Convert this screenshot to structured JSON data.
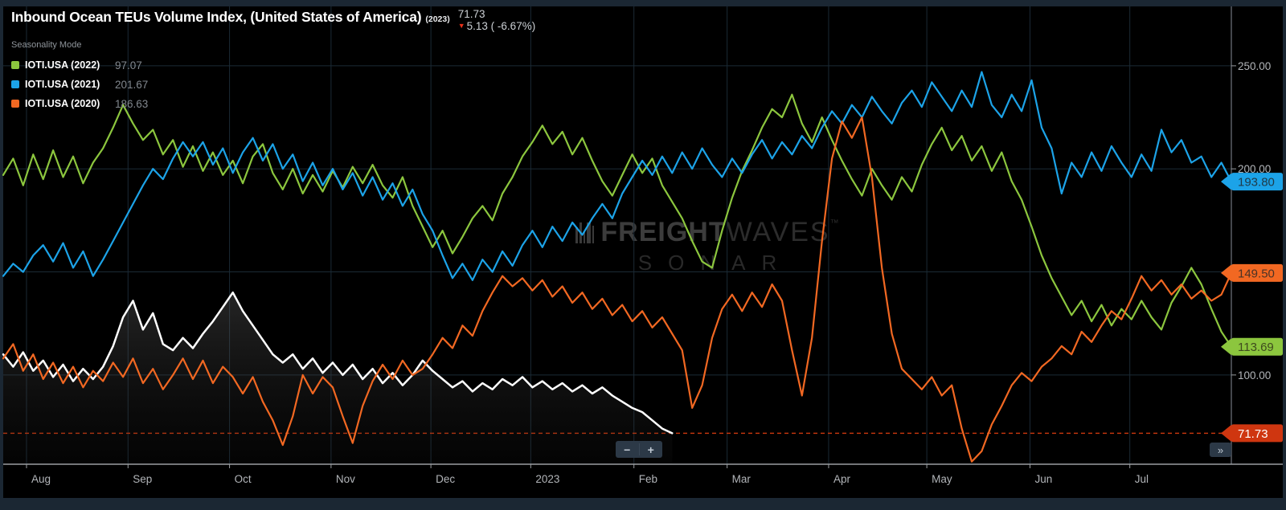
{
  "header": {
    "title": "Inbound Ocean TEUs Volume Index, (United States of America)",
    "year_tag": "(2023)",
    "last_value": "71.73",
    "change_arrow": "▼",
    "change_text": "5.13 ( -6.67%)"
  },
  "legend": {
    "mode_label": "Seasonality Mode",
    "items": [
      {
        "label": "IOTI.USA (2022)",
        "value": "97.07",
        "color": "#8cc63e"
      },
      {
        "label": "IOTI.USA (2021)",
        "value": "201.67",
        "color": "#1ca3e8"
      },
      {
        "label": "IOTI.USA (2020)",
        "value": "186.63",
        "color": "#f26822"
      }
    ]
  },
  "watermark": {
    "brand_bold": "FREIGHT",
    "brand_light": "WAVES",
    "tm": "™",
    "subbrand": "SONAR"
  },
  "controls": {
    "zoom_out": "−",
    "zoom_in": "+",
    "expand": "»"
  },
  "chart_data": {
    "type": "line",
    "title": "Inbound Ocean TEUs Volume Index, (United States of America) (2023)",
    "grid": true,
    "legend_position": "top-left",
    "x_axis": {
      "domain_days": [
        0,
        369
      ],
      "tick_days": [
        7,
        37.5,
        68,
        98.5,
        128.5,
        158.5,
        189.5,
        217.5,
        248,
        277.5,
        308.5,
        338.5
      ],
      "tick_labels": [
        "Aug",
        "Sep",
        "Oct",
        "Nov",
        "Dec",
        "2023",
        "Feb",
        "Mar",
        "Apr",
        "May",
        "Jun",
        "Jul"
      ]
    },
    "y_axis": {
      "ylim": [
        56.7,
        278.8
      ],
      "grid_values": [
        250,
        200,
        150,
        100
      ],
      "tick_labels": [
        "250.00",
        "200.00",
        "150.00",
        "100.00"
      ]
    },
    "last_value_line": {
      "value": 71.73,
      "color": "#d0390e",
      "style": "dashed"
    },
    "price_tags": [
      {
        "series": "IOTI.USA (2021)",
        "label": "193.80",
        "value": 193.8,
        "color": "#1ca3e8",
        "text_color": "#203a48"
      },
      {
        "series": "IOTI.USA (2020)",
        "label": "149.50",
        "value": 149.5,
        "color": "#f26822",
        "text_color": "#4a3226"
      },
      {
        "series": "IOTI.USA (2022)",
        "label": "113.69",
        "value": 113.69,
        "color": "#8cc63e",
        "text_color": "#3e4a1e"
      },
      {
        "series": "IOTI.USA (2023)",
        "label": "71.73",
        "value": 71.73,
        "color": "#cf3610",
        "text_color": "#ffffff"
      }
    ],
    "day_step": 3,
    "series": [
      {
        "name": "IOTI.USA (2023)",
        "color": "#ffffff",
        "style": "area",
        "last_value": 71.73,
        "values": [
          110,
          104,
          111,
          102,
          107,
          99,
          105,
          97,
          103,
          98,
          104,
          114,
          128,
          136,
          122,
          130,
          115,
          112,
          118,
          113,
          120,
          126,
          133,
          140,
          131,
          124,
          117,
          110,
          106,
          110,
          103,
          108,
          101,
          106,
          100,
          105,
          98,
          103,
          96,
          101,
          95,
          100,
          107,
          102,
          98,
          94,
          97,
          92,
          96,
          93,
          98,
          95,
          99,
          94,
          97,
          93,
          96,
          92,
          95,
          91,
          94,
          90,
          87,
          84,
          82,
          78,
          74,
          71.73
        ]
      },
      {
        "name": "IOTI.USA (2022)",
        "color": "#8cc63e",
        "style": "line",
        "last_value": 113.69,
        "values": [
          197,
          205,
          192,
          207,
          195,
          209,
          196,
          206,
          193,
          203,
          210,
          220,
          231,
          222,
          214,
          219,
          207,
          214,
          201,
          211,
          199,
          208,
          197,
          204,
          193,
          206,
          212,
          198,
          190,
          200,
          188,
          197,
          189,
          199,
          191,
          201,
          193,
          202,
          192,
          186,
          196,
          182,
          172,
          162,
          170,
          159,
          167,
          176,
          182,
          175,
          188,
          196,
          206,
          213,
          221,
          212,
          218,
          207,
          215,
          204,
          194,
          187,
          197,
          207,
          198,
          205,
          192,
          184,
          176,
          165,
          155,
          152,
          170,
          186,
          199,
          209,
          220,
          229,
          225,
          236,
          222,
          213,
          225,
          214,
          204,
          195,
          187,
          200,
          192,
          185,
          196,
          189,
          202,
          212,
          220,
          209,
          216,
          204,
          211,
          199,
          208,
          194,
          185,
          172,
          158,
          147,
          138,
          129,
          136,
          126,
          134,
          124,
          132,
          127,
          136,
          128,
          122,
          135,
          143,
          152,
          144,
          132,
          121,
          113.69
        ]
      },
      {
        "name": "IOTI.USA (2021)",
        "color": "#1ca3e8",
        "style": "line",
        "last_value": 193.8,
        "values": [
          148,
          154,
          150,
          158,
          163,
          155,
          164,
          152,
          160,
          148,
          156,
          165,
          174,
          183,
          192,
          200,
          195,
          205,
          213,
          206,
          213,
          202,
          210,
          198,
          208,
          215,
          204,
          212,
          200,
          207,
          194,
          203,
          192,
          200,
          190,
          198,
          187,
          196,
          185,
          193,
          182,
          190,
          178,
          170,
          158,
          147,
          154,
          146,
          156,
          150,
          160,
          153,
          163,
          170,
          162,
          172,
          165,
          174,
          168,
          176,
          183,
          176,
          188,
          196,
          204,
          197,
          206,
          198,
          208,
          200,
          210,
          202,
          196,
          205,
          198,
          207,
          214,
          205,
          213,
          207,
          216,
          210,
          220,
          228,
          222,
          231,
          225,
          235,
          228,
          222,
          232,
          238,
          230,
          242,
          235,
          228,
          238,
          230,
          247,
          231,
          225,
          236,
          228,
          243,
          220,
          210,
          188,
          203,
          196,
          208,
          199,
          211,
          203,
          196,
          207,
          199,
          219,
          208,
          214,
          203,
          206,
          196,
          203,
          193.8
        ]
      },
      {
        "name": "IOTI.USA (2020)",
        "color": "#f26822",
        "style": "line",
        "last_value": 149.5,
        "values": [
          108,
          115,
          102,
          110,
          98,
          106,
          96,
          104,
          94,
          102,
          97,
          106,
          99,
          108,
          96,
          103,
          93,
          100,
          108,
          98,
          107,
          96,
          104,
          99,
          91,
          99,
          87,
          78,
          66,
          80,
          100,
          91,
          99,
          94,
          80,
          67,
          85,
          97,
          105,
          98,
          107,
          100,
          103,
          110,
          118,
          113,
          124,
          119,
          131,
          140,
          148,
          143,
          147,
          141,
          146,
          138,
          143,
          135,
          140,
          132,
          137,
          129,
          134,
          126,
          131,
          123,
          128,
          120,
          112,
          84,
          95,
          118,
          132,
          139,
          131,
          140,
          133,
          144,
          136,
          112,
          90,
          118,
          165,
          205,
          223,
          215,
          225,
          196,
          152,
          120,
          103,
          98,
          93,
          99,
          90,
          95,
          74,
          58,
          63,
          76,
          85,
          95,
          101,
          97,
          104,
          108,
          114,
          110,
          121,
          116,
          124,
          131,
          127,
          137,
          148,
          141,
          146,
          139,
          144,
          137,
          141,
          136,
          139,
          149.5
        ]
      }
    ]
  }
}
